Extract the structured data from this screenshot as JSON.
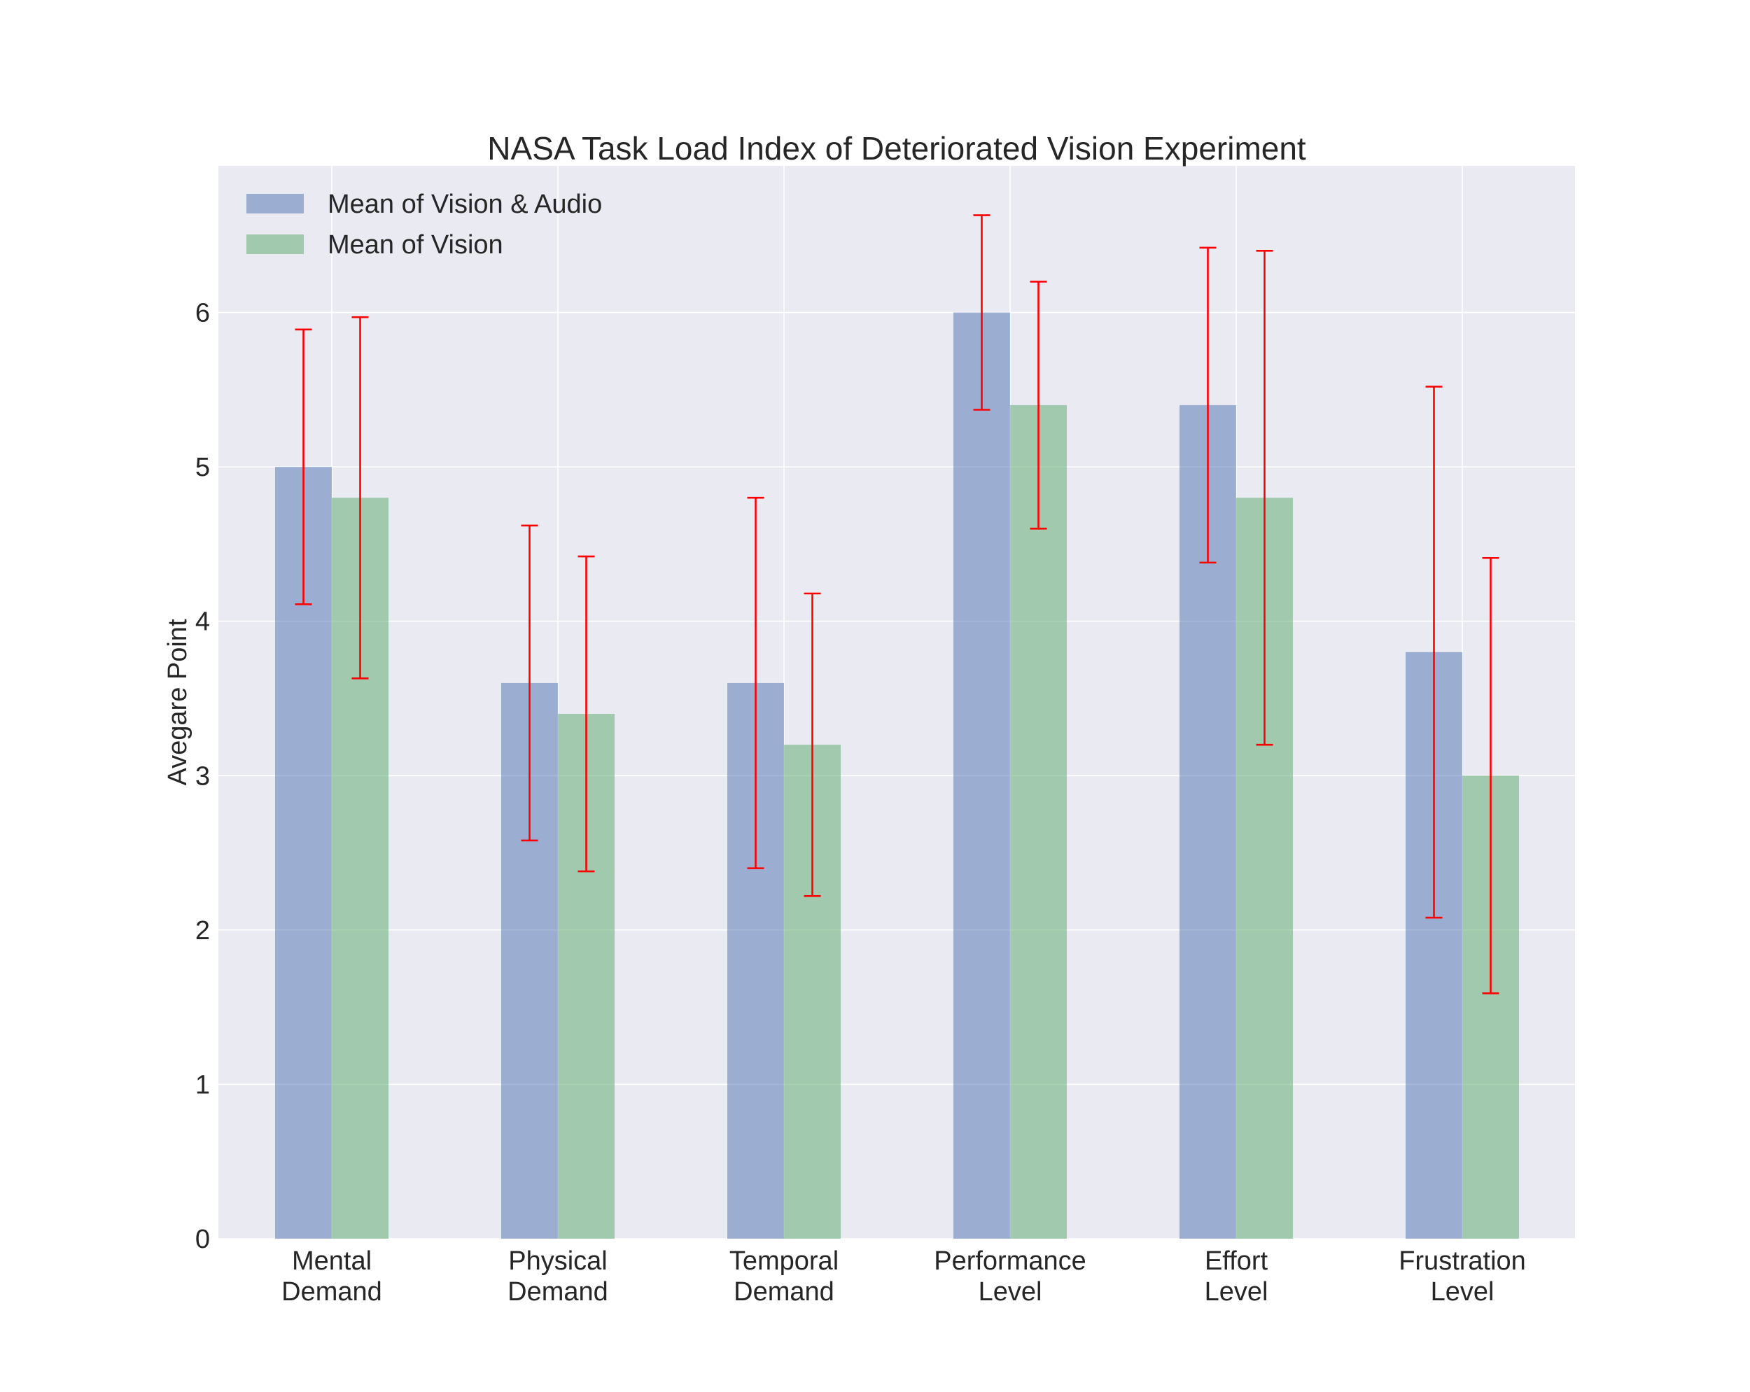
{
  "chart_data": {
    "type": "bar",
    "title": "NASA Task Load Index of Deteriorated Vision Experiment",
    "xlabel": "",
    "ylabel": "Avegare Point",
    "categories": [
      [
        "Mental",
        "Demand"
      ],
      [
        "Physical",
        "Demand"
      ],
      [
        "Temporal",
        "Demand"
      ],
      [
        "Performance",
        "Level"
      ],
      [
        "Effort",
        "Level"
      ],
      [
        "Frustration",
        "Level"
      ]
    ],
    "ylim": [
      0,
      6.95
    ],
    "yticks": [
      0,
      1,
      2,
      3,
      4,
      5,
      6
    ],
    "grid": true,
    "legend_position": "top-left",
    "error_bar_color": "#ff0000",
    "background_color": "#eaeaf2",
    "series": [
      {
        "name": "Mean of Vision & Audio",
        "color": "#4c72b0",
        "values": [
          5.0,
          3.6,
          3.6,
          6.0,
          5.4,
          3.8
        ],
        "errors": [
          0.89,
          1.02,
          1.2,
          0.63,
          1.02,
          1.72
        ]
      },
      {
        "name": "Mean of Vision",
        "color": "#55a868",
        "values": [
          4.8,
          3.4,
          3.2,
          5.4,
          4.8,
          3.0
        ],
        "errors": [
          1.17,
          1.02,
          0.98,
          0.8,
          1.6,
          1.41
        ]
      }
    ]
  }
}
